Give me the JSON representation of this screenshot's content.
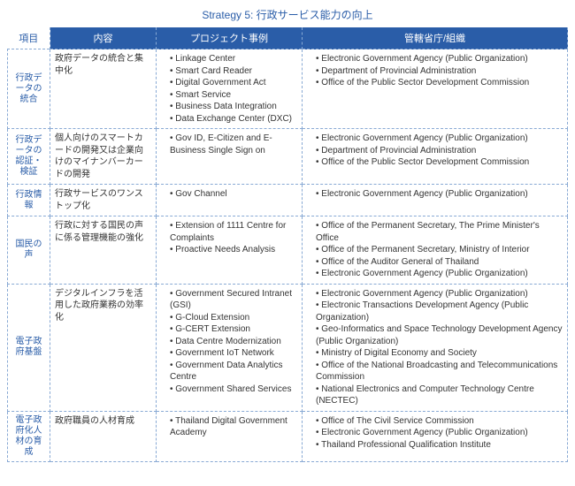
{
  "title": "Strategy 5: 行政サービス能力の向上",
  "headers": {
    "item": "項目",
    "content": "内容",
    "project": "プロジェクト事例",
    "org": "管轄省庁/組織"
  },
  "colors": {
    "brand": "#2a5da8",
    "dash": "#88a9d4",
    "text": "#333333",
    "header_text": "#ffffff"
  },
  "rows": [
    {
      "item": "行政データの統合",
      "content": "政府データの統合と集中化",
      "projects": [
        "Linkage Center",
        "Smart Card Reader",
        "Digital Government Act",
        "Smart Service",
        "Business Data Integration",
        "Data Exchange Center (DXC)"
      ],
      "orgs": [
        "Electronic Government Agency (Public Organization)",
        "Department of Provincial Administration",
        "Office of the Public Sector Development Commission"
      ]
    },
    {
      "item": "行政データの認証・検証",
      "content": "個人向けのスマートカードの開発又は企業向けのマイナンバーカードの開発",
      "projects": [
        "Gov ID, E-Citizen and E-Business Single Sign on"
      ],
      "orgs": [
        "Electronic Government Agency (Public Organization)",
        "Department of Provincial Administration",
        "Office of the Public Sector Development Commission"
      ]
    },
    {
      "item": "行政情報",
      "content": "行政サービスのワンストップ化",
      "projects": [
        "Gov Channel"
      ],
      "orgs": [
        "Electronic Government Agency (Public Organization)"
      ]
    },
    {
      "item": "国民の声",
      "content": "行政に対する国民の声に係る管理機能の強化",
      "projects": [
        "Extension of 1111 Centre for Complaints",
        "Proactive Needs Analysis"
      ],
      "orgs": [
        "Office of the Permanent Secretary, The Prime Minister's Office",
        "Office of the Permanent Secretary, Ministry of Interior",
        "Office of the Auditor General of Thailand",
        "Electronic Government Agency (Public Organization)"
      ]
    },
    {
      "item": "電子政府基盤",
      "content": "デジタルインフラを活用した政府業務の効率化",
      "projects": [
        "Government Secured Intranet (GSI)",
        "G-Cloud Extension",
        "G-CERT Extension",
        "Data Centre Modernization",
        "Government IoT Network",
        "Government Data Analytics Centre",
        "Government Shared Services"
      ],
      "orgs": [
        "Electronic Government Agency (Public Organization)",
        "Electronic Transactions Development Agency (Public Organization)",
        "Geo-Informatics and Space Technology Development Agency (Public Organization)",
        "Ministry of Digital Economy and Society",
        "Office of the National Broadcasting and Telecommunications Commission",
        "National Electronics and Computer Technology Centre (NECTEC)"
      ]
    },
    {
      "item": "電子政府化人材の育成",
      "content": "政府職員の人材育成",
      "projects": [
        "Thailand Digital Government Academy"
      ],
      "orgs": [
        "Office of The Civil Service Commission",
        "Electronic Government Agency (Public Organization)",
        "Thailand Professional Qualification Institute"
      ]
    }
  ]
}
